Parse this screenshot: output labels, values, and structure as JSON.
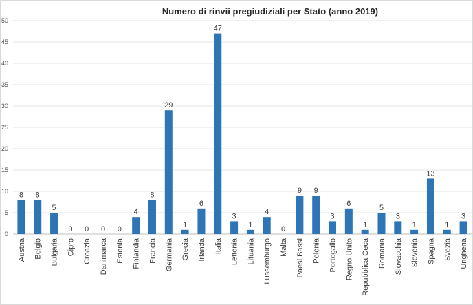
{
  "chart_data": {
    "type": "bar",
    "title": "Numero di rinvii pregiudiziali per Stato (anno 2019)",
    "xlabel": "",
    "ylabel": "",
    "ylim": [
      0,
      50
    ],
    "yticks": [
      0,
      5,
      10,
      15,
      20,
      25,
      30,
      35,
      40,
      45,
      50
    ],
    "grid": true,
    "bar_color": "#2e75b6",
    "categories": [
      "Austria",
      "Belgio",
      "Bulgaria",
      "Cipro",
      "Croazia",
      "Danimarca",
      "Estonia",
      "Finlandia",
      "Francia",
      "Germania",
      "Grecia",
      "Irlanda",
      "Italia",
      "Lettonia",
      "Lituania",
      "Lussemburgo",
      "Malta",
      "Paesi Bassi",
      "Polonia",
      "Portogallo",
      "Regno Unito",
      "Repubblica Ceca",
      "Romania",
      "Slovacchia",
      "Slovenia",
      "Spagna",
      "Svezia",
      "Ungheria"
    ],
    "values": [
      8,
      8,
      5,
      0,
      0,
      0,
      0,
      4,
      8,
      29,
      1,
      6,
      47,
      3,
      1,
      4,
      0,
      9,
      9,
      3,
      6,
      1,
      5,
      3,
      1,
      13,
      1,
      3
    ]
  }
}
